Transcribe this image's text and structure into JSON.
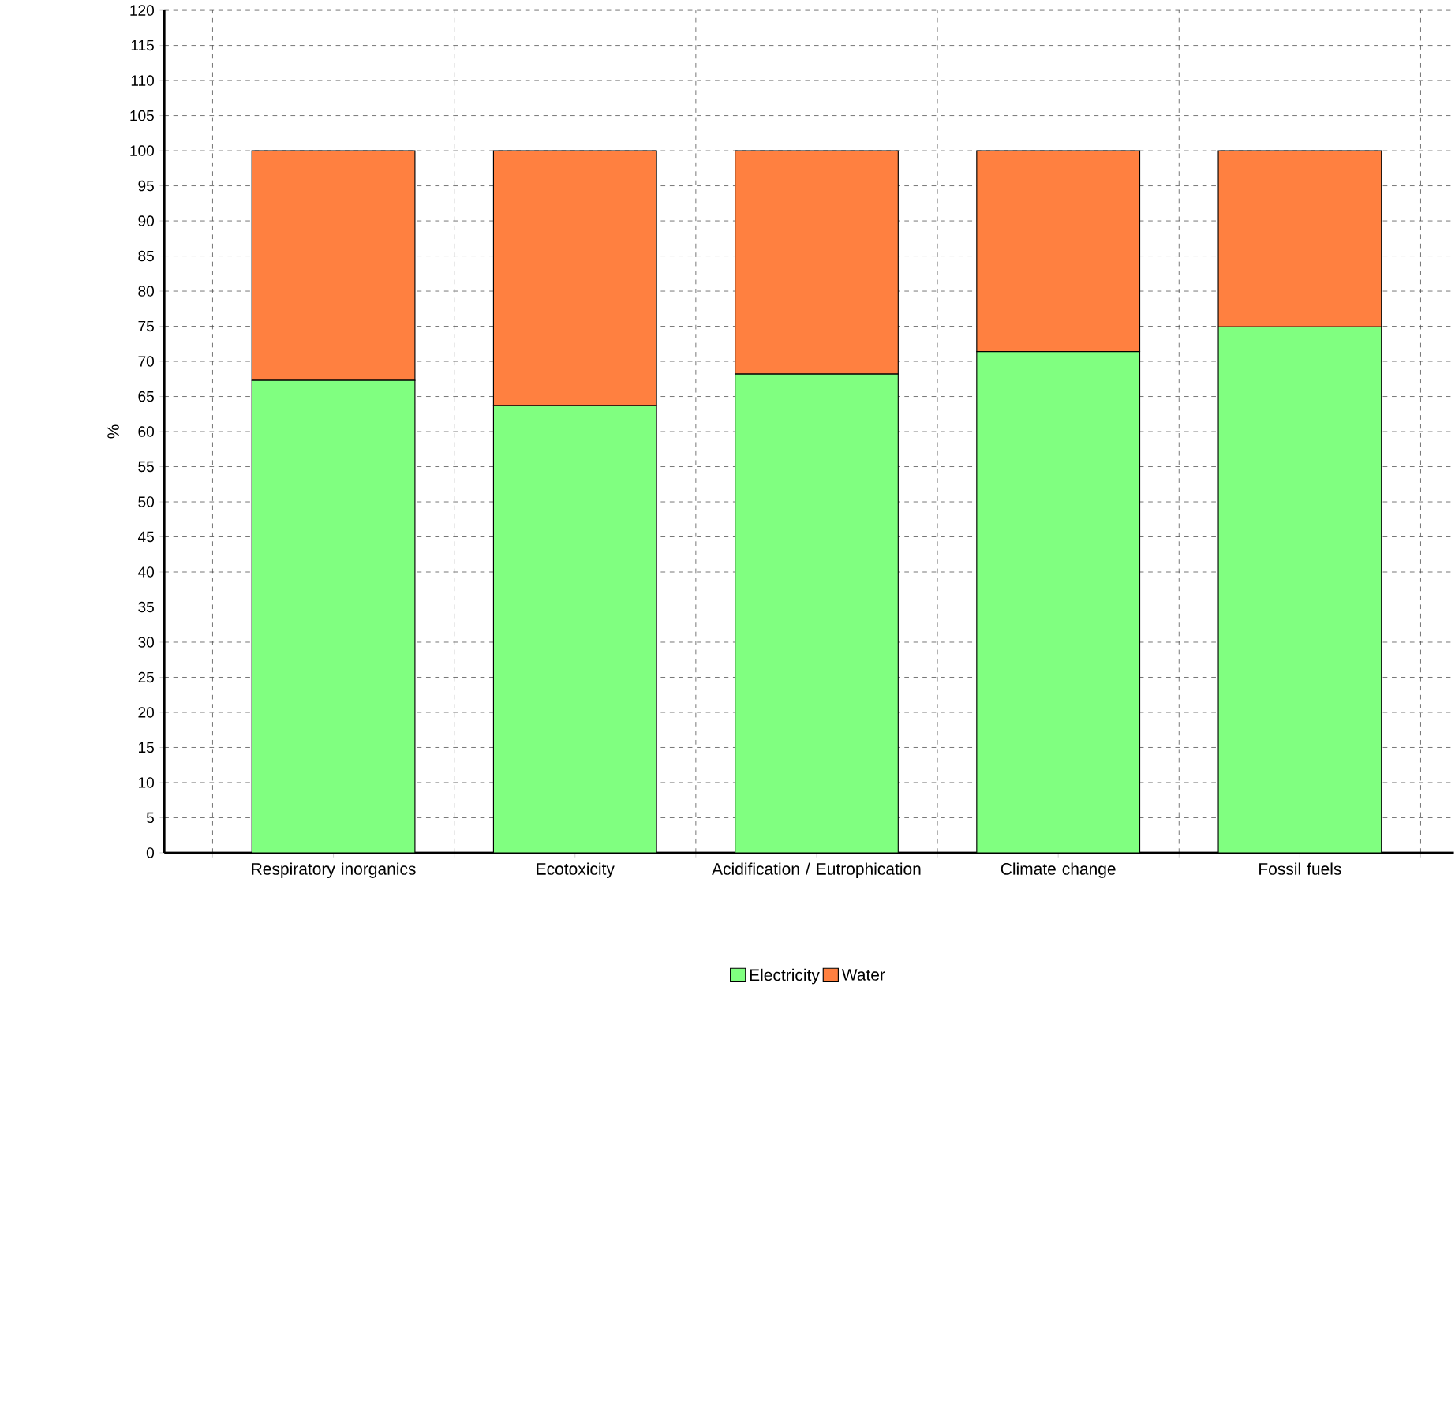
{
  "chart_data": {
    "type": "bar",
    "stacked": true,
    "ylabel": "%",
    "categories": [
      "Respiratory inorganics",
      "Ecotoxicity",
      "Acidification / Eutrophication",
      "Climate change",
      "Fossil fuels"
    ],
    "series": [
      {
        "name": "Electricity",
        "color": "#80ff80",
        "values": [
          67.3,
          63.7,
          68.2,
          71.4,
          74.9
        ]
      },
      {
        "name": "Water",
        "color": "#ff8040",
        "values": [
          32.7,
          36.3,
          31.8,
          28.6,
          25.1
        ]
      }
    ],
    "ylim": [
      0,
      120
    ],
    "yticks": [
      0,
      5,
      10,
      15,
      20,
      25,
      30,
      35,
      40,
      45,
      50,
      55,
      60,
      65,
      70,
      75,
      80,
      85,
      90,
      95,
      100,
      105,
      110,
      115,
      120
    ],
    "grid": true,
    "legend": "bottom"
  }
}
